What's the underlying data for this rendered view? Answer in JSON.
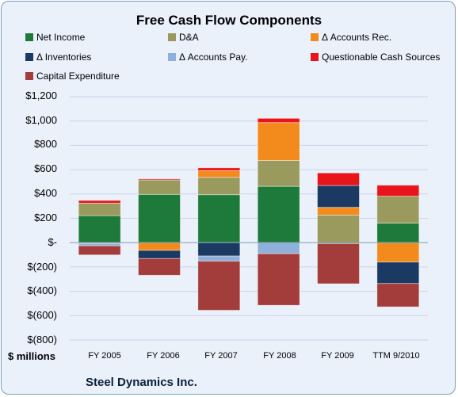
{
  "chart_data": {
    "type": "bar",
    "stacked": true,
    "title": "Free Cash Flow Components",
    "company": "Steel Dynamics Inc.",
    "ylabel": "$ millions",
    "ylim": [
      -800,
      1200
    ],
    "yticks": [
      -800,
      -600,
      -400,
      -200,
      0,
      200,
      400,
      600,
      800,
      1000,
      1200
    ],
    "ytick_labels": [
      "$(800)",
      "$(600)",
      "$(400)",
      "$(200)",
      "$-",
      "$200",
      "$400",
      "$600",
      "$800",
      "$1,000",
      "$1,200"
    ],
    "categories": [
      "FY 2005",
      "FY 2006",
      "FY 2007",
      "FY 2008",
      "FY 2009",
      "TTM 9/2010"
    ],
    "grid": true,
    "legend_position": "top",
    "series": [
      {
        "name": "Net Income",
        "color": "#1e7a3a",
        "values": [
          222,
          397,
          394,
          463,
          -8,
          160
        ]
      },
      {
        "name": "D&A",
        "color": "#9a9a5e",
        "values": [
          103,
          119,
          143,
          213,
          227,
          222
        ]
      },
      {
        "name": "Δ Accounts Rec.",
        "color": "#f28a1c",
        "values": [
          -4,
          -64,
          55,
          311,
          63,
          -160
        ]
      },
      {
        "name": "Δ Inventories",
        "color": "#1b3a63",
        "values": [
          -5,
          -67,
          -110,
          0,
          180,
          -176
        ]
      },
      {
        "name": "Δ Accounts Pay.",
        "color": "#8fb0dc",
        "values": [
          -17,
          0,
          -42,
          -91,
          0,
          0
        ]
      },
      {
        "name": "Questionable Cash Sources",
        "color": "#e8141c",
        "values": [
          22,
          8,
          23,
          35,
          103,
          90
        ]
      },
      {
        "name": "Capital Expenditure",
        "color": "#a33d3c",
        "values": [
          -75,
          -137,
          -404,
          -424,
          -330,
          -192
        ]
      }
    ]
  }
}
